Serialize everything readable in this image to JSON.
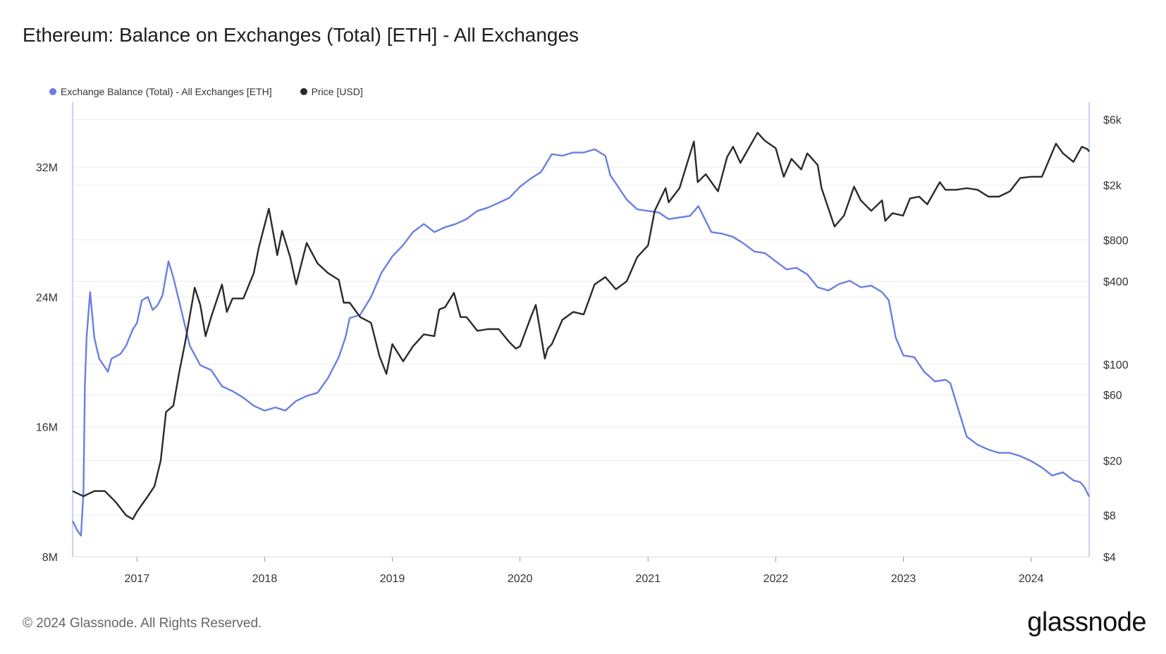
{
  "title": "Ethereum: Balance on Exchanges (Total) [ETH] - All Exchanges",
  "footer": {
    "copyright": "© 2024 Glassnode. All Rights Reserved.",
    "brand": "glassnode"
  },
  "colors": {
    "balance": "#6a7fe0",
    "price": "#2a2a2a",
    "grid": "#ececec",
    "axis": "#b9c3ee"
  },
  "chart_data": {
    "type": "line",
    "title": "Ethereum: Balance on Exchanges (Total) [ETH] - All Exchanges",
    "x_axis": {
      "ticks": [
        "2017",
        "2018",
        "2019",
        "2020",
        "2021",
        "2022",
        "2023",
        "2024"
      ],
      "range": [
        "2016-07-01",
        "2024-06-15"
      ]
    },
    "y_left": {
      "scale": "linear",
      "range": [
        8000000,
        36000000
      ],
      "ticks": [
        8000000,
        16000000,
        24000000,
        32000000
      ],
      "tick_labels": [
        "8M",
        "16M",
        "24M",
        "32M"
      ]
    },
    "y_right": {
      "scale": "log",
      "range": [
        4,
        8000
      ],
      "ticks": [
        4,
        8,
        20,
        60,
        100,
        400,
        800,
        2000,
        6000
      ],
      "tick_labels": [
        "$4",
        "$8",
        "$20",
        "$60",
        "$100",
        "$400",
        "$800",
        "$2k",
        "$6k"
      ]
    },
    "grid": true,
    "legend_position": "top-left",
    "series": [
      {
        "name": "Exchange Balance (Total) - All Exchanges [ETH]",
        "axis": "left",
        "points": [
          [
            "2016-07-01",
            10200000
          ],
          [
            "2016-07-15",
            9600000
          ],
          [
            "2016-07-25",
            9300000
          ],
          [
            "2016-08-01",
            12000000
          ],
          [
            "2016-08-05",
            18500000
          ],
          [
            "2016-08-10",
            21500000
          ],
          [
            "2016-08-20",
            24300000
          ],
          [
            "2016-09-01",
            21500000
          ],
          [
            "2016-09-15",
            20200000
          ],
          [
            "2016-10-10",
            19400000
          ],
          [
            "2016-10-20",
            20200000
          ],
          [
            "2016-11-15",
            20500000
          ],
          [
            "2016-12-01",
            21000000
          ],
          [
            "2016-12-20",
            22000000
          ],
          [
            "2017-01-01",
            22400000
          ],
          [
            "2017-01-15",
            23800000
          ],
          [
            "2017-02-01",
            24000000
          ],
          [
            "2017-02-15",
            23200000
          ],
          [
            "2017-03-01",
            23500000
          ],
          [
            "2017-03-15",
            24100000
          ],
          [
            "2017-04-01",
            26200000
          ],
          [
            "2017-04-15",
            25200000
          ],
          [
            "2017-05-01",
            23800000
          ],
          [
            "2017-06-01",
            21000000
          ],
          [
            "2017-07-01",
            19800000
          ],
          [
            "2017-08-01",
            19500000
          ],
          [
            "2017-09-01",
            18500000
          ],
          [
            "2017-10-01",
            18200000
          ],
          [
            "2017-11-01",
            17800000
          ],
          [
            "2017-12-01",
            17300000
          ],
          [
            "2018-01-01",
            17000000
          ],
          [
            "2018-02-01",
            17200000
          ],
          [
            "2018-03-01",
            17000000
          ],
          [
            "2018-04-01",
            17600000
          ],
          [
            "2018-05-01",
            17900000
          ],
          [
            "2018-06-01",
            18100000
          ],
          [
            "2018-07-01",
            19000000
          ],
          [
            "2018-08-01",
            20300000
          ],
          [
            "2018-08-20",
            21500000
          ],
          [
            "2018-09-01",
            22700000
          ],
          [
            "2018-10-01",
            22900000
          ],
          [
            "2018-11-01",
            24000000
          ],
          [
            "2018-12-01",
            25500000
          ],
          [
            "2019-01-01",
            26500000
          ],
          [
            "2019-02-01",
            27200000
          ],
          [
            "2019-03-01",
            28000000
          ],
          [
            "2019-04-01",
            28500000
          ],
          [
            "2019-05-01",
            28000000
          ],
          [
            "2019-06-01",
            28300000
          ],
          [
            "2019-07-01",
            28500000
          ],
          [
            "2019-08-01",
            28800000
          ],
          [
            "2019-09-01",
            29300000
          ],
          [
            "2019-10-01",
            29500000
          ],
          [
            "2019-11-01",
            29800000
          ],
          [
            "2019-12-01",
            30100000
          ],
          [
            "2020-01-01",
            30800000
          ],
          [
            "2020-02-01",
            31300000
          ],
          [
            "2020-03-01",
            31700000
          ],
          [
            "2020-04-01",
            32800000
          ],
          [
            "2020-05-01",
            32700000
          ],
          [
            "2020-06-01",
            32900000
          ],
          [
            "2020-07-01",
            32900000
          ],
          [
            "2020-08-01",
            33100000
          ],
          [
            "2020-09-01",
            32700000
          ],
          [
            "2020-09-15",
            31500000
          ],
          [
            "2020-10-01",
            31000000
          ],
          [
            "2020-11-01",
            30000000
          ],
          [
            "2020-12-01",
            29400000
          ],
          [
            "2021-01-01",
            29300000
          ],
          [
            "2021-02-01",
            29200000
          ],
          [
            "2021-03-01",
            28800000
          ],
          [
            "2021-04-01",
            28900000
          ],
          [
            "2021-05-01",
            29000000
          ],
          [
            "2021-05-25",
            29600000
          ],
          [
            "2021-06-10",
            28900000
          ],
          [
            "2021-07-01",
            28000000
          ],
          [
            "2021-08-01",
            27900000
          ],
          [
            "2021-09-01",
            27700000
          ],
          [
            "2021-10-01",
            27300000
          ],
          [
            "2021-11-01",
            26800000
          ],
          [
            "2021-12-01",
            26700000
          ],
          [
            "2022-01-01",
            26200000
          ],
          [
            "2022-02-01",
            25700000
          ],
          [
            "2022-03-01",
            25800000
          ],
          [
            "2022-04-01",
            25400000
          ],
          [
            "2022-05-01",
            24600000
          ],
          [
            "2022-06-01",
            24400000
          ],
          [
            "2022-07-01",
            24800000
          ],
          [
            "2022-08-01",
            25000000
          ],
          [
            "2022-09-01",
            24600000
          ],
          [
            "2022-10-01",
            24700000
          ],
          [
            "2022-11-01",
            24300000
          ],
          [
            "2022-11-20",
            23800000
          ],
          [
            "2022-12-10",
            21500000
          ],
          [
            "2023-01-01",
            20400000
          ],
          [
            "2023-02-01",
            20300000
          ],
          [
            "2023-03-01",
            19400000
          ],
          [
            "2023-04-01",
            18800000
          ],
          [
            "2023-05-01",
            18900000
          ],
          [
            "2023-05-15",
            18700000
          ],
          [
            "2023-06-01",
            17500000
          ],
          [
            "2023-07-01",
            15400000
          ],
          [
            "2023-08-01",
            14900000
          ],
          [
            "2023-09-01",
            14600000
          ],
          [
            "2023-10-01",
            14400000
          ],
          [
            "2023-11-01",
            14400000
          ],
          [
            "2023-12-01",
            14200000
          ],
          [
            "2024-01-01",
            13900000
          ],
          [
            "2024-02-01",
            13500000
          ],
          [
            "2024-03-01",
            13000000
          ],
          [
            "2024-04-01",
            13200000
          ],
          [
            "2024-05-01",
            12700000
          ],
          [
            "2024-05-20",
            12600000
          ],
          [
            "2024-06-01",
            12300000
          ],
          [
            "2024-06-15",
            11700000
          ]
        ]
      },
      {
        "name": "Price [USD]",
        "axis": "right",
        "points": [
          [
            "2016-07-01",
            12
          ],
          [
            "2016-08-01",
            11
          ],
          [
            "2016-09-01",
            12
          ],
          [
            "2016-10-01",
            12
          ],
          [
            "2016-11-01",
            10
          ],
          [
            "2016-12-01",
            8
          ],
          [
            "2016-12-20",
            7.5
          ],
          [
            "2017-01-01",
            8.5
          ],
          [
            "2017-02-01",
            11
          ],
          [
            "2017-02-20",
            13
          ],
          [
            "2017-03-10",
            20
          ],
          [
            "2017-03-25",
            45
          ],
          [
            "2017-04-15",
            50
          ],
          [
            "2017-05-01",
            85
          ],
          [
            "2017-05-20",
            150
          ],
          [
            "2017-06-15",
            360
          ],
          [
            "2017-07-01",
            270
          ],
          [
            "2017-07-16",
            160
          ],
          [
            "2017-08-01",
            220
          ],
          [
            "2017-09-01",
            380
          ],
          [
            "2017-09-15",
            240
          ],
          [
            "2017-10-01",
            300
          ],
          [
            "2017-11-01",
            300
          ],
          [
            "2017-12-01",
            460
          ],
          [
            "2017-12-15",
            700
          ],
          [
            "2018-01-13",
            1350
          ],
          [
            "2018-02-06",
            620
          ],
          [
            "2018-02-20",
            930
          ],
          [
            "2018-03-15",
            600
          ],
          [
            "2018-04-01",
            380
          ],
          [
            "2018-05-01",
            760
          ],
          [
            "2018-06-01",
            540
          ],
          [
            "2018-07-01",
            460
          ],
          [
            "2018-08-01",
            410
          ],
          [
            "2018-08-15",
            280
          ],
          [
            "2018-09-01",
            280
          ],
          [
            "2018-10-01",
            220
          ],
          [
            "2018-11-01",
            200
          ],
          [
            "2018-11-25",
            115
          ],
          [
            "2018-12-15",
            85
          ],
          [
            "2019-01-01",
            140
          ],
          [
            "2019-02-01",
            105
          ],
          [
            "2019-03-01",
            135
          ],
          [
            "2019-04-01",
            165
          ],
          [
            "2019-05-01",
            160
          ],
          [
            "2019-05-15",
            250
          ],
          [
            "2019-06-01",
            260
          ],
          [
            "2019-06-26",
            330
          ],
          [
            "2019-07-15",
            220
          ],
          [
            "2019-08-01",
            220
          ],
          [
            "2019-09-01",
            175
          ],
          [
            "2019-10-01",
            180
          ],
          [
            "2019-11-01",
            180
          ],
          [
            "2019-12-01",
            145
          ],
          [
            "2019-12-20",
            130
          ],
          [
            "2020-01-01",
            135
          ],
          [
            "2020-02-01",
            220
          ],
          [
            "2020-02-15",
            270
          ],
          [
            "2020-03-12",
            110
          ],
          [
            "2020-03-20",
            130
          ],
          [
            "2020-04-01",
            140
          ],
          [
            "2020-05-01",
            210
          ],
          [
            "2020-06-01",
            240
          ],
          [
            "2020-07-01",
            230
          ],
          [
            "2020-08-01",
            380
          ],
          [
            "2020-09-01",
            430
          ],
          [
            "2020-10-01",
            350
          ],
          [
            "2020-11-01",
            400
          ],
          [
            "2020-12-01",
            600
          ],
          [
            "2021-01-01",
            730
          ],
          [
            "2021-01-20",
            1300
          ],
          [
            "2021-02-20",
            1900
          ],
          [
            "2021-03-01",
            1500
          ],
          [
            "2021-04-01",
            1900
          ],
          [
            "2021-05-12",
            4150
          ],
          [
            "2021-05-23",
            2100
          ],
          [
            "2021-06-15",
            2400
          ],
          [
            "2021-07-20",
            1800
          ],
          [
            "2021-08-15",
            3200
          ],
          [
            "2021-09-01",
            3800
          ],
          [
            "2021-09-22",
            2900
          ],
          [
            "2021-11-10",
            4800
          ],
          [
            "2021-12-01",
            4200
          ],
          [
            "2022-01-01",
            3700
          ],
          [
            "2022-01-24",
            2300
          ],
          [
            "2022-02-15",
            3100
          ],
          [
            "2022-03-15",
            2600
          ],
          [
            "2022-04-01",
            3400
          ],
          [
            "2022-05-01",
            2800
          ],
          [
            "2022-05-12",
            1900
          ],
          [
            "2022-06-18",
            1000
          ],
          [
            "2022-07-15",
            1200
          ],
          [
            "2022-08-13",
            1950
          ],
          [
            "2022-09-01",
            1550
          ],
          [
            "2022-10-01",
            1300
          ],
          [
            "2022-11-01",
            1550
          ],
          [
            "2022-11-10",
            1100
          ],
          [
            "2022-12-01",
            1250
          ],
          [
            "2022-12-31",
            1200
          ],
          [
            "2023-01-20",
            1600
          ],
          [
            "2023-02-15",
            1650
          ],
          [
            "2023-03-10",
            1450
          ],
          [
            "2023-04-15",
            2100
          ],
          [
            "2023-05-01",
            1850
          ],
          [
            "2023-06-01",
            1850
          ],
          [
            "2023-07-01",
            1900
          ],
          [
            "2023-08-01",
            1850
          ],
          [
            "2023-09-01",
            1650
          ],
          [
            "2023-10-01",
            1650
          ],
          [
            "2023-11-01",
            1800
          ],
          [
            "2023-12-01",
            2250
          ],
          [
            "2024-01-01",
            2300
          ],
          [
            "2024-02-01",
            2300
          ],
          [
            "2024-03-12",
            4000
          ],
          [
            "2024-04-01",
            3400
          ],
          [
            "2024-05-01",
            2950
          ],
          [
            "2024-05-25",
            3800
          ],
          [
            "2024-06-10",
            3650
          ],
          [
            "2024-06-15",
            3500
          ]
        ]
      }
    ]
  }
}
